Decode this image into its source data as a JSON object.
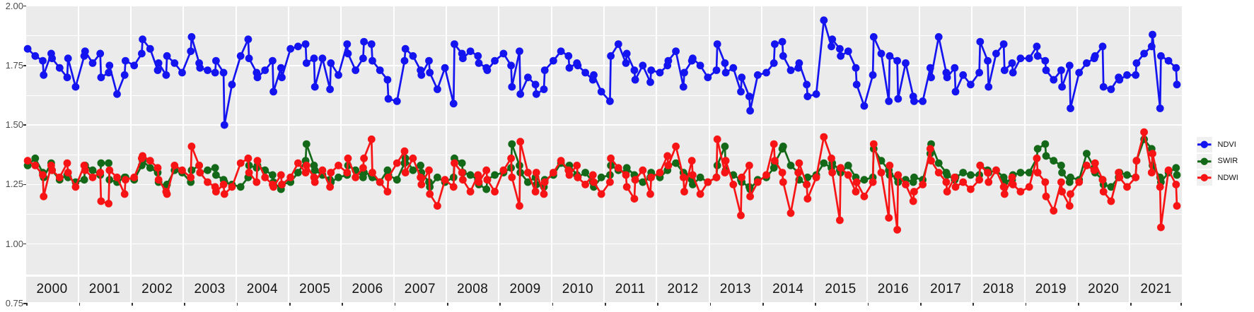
{
  "figure": {
    "title": "",
    "background": "#ffffff"
  },
  "y_axis": {
    "tick_labels": [
      "2.00",
      "1.75",
      "1.50",
      "1.25",
      "1.00",
      "0.75"
    ],
    "tick_values": [
      2.0,
      1.75,
      1.5,
      1.25,
      1.0,
      0.75
    ]
  },
  "x_axis": {
    "years": [
      "2000",
      "2001",
      "2002",
      "2003",
      "2004",
      "2005",
      "2006",
      "2007",
      "2008",
      "2009",
      "2010",
      "2011",
      "2012",
      "2013",
      "2014",
      "2015",
      "2016",
      "2017",
      "2018",
      "2019",
      "2020",
      "2021"
    ]
  },
  "legend": {
    "position": "right",
    "items": [
      {
        "label": "NDVI",
        "color": "#1414f0"
      },
      {
        "label": "SWIR",
        "color": "#146919"
      },
      {
        "label": "NDWI",
        "color": "#f81414"
      }
    ]
  },
  "colors": {
    "panel_bg": "#ebebeb",
    "strip_bg": "#e9e9e9",
    "grid": "#ffffff",
    "axis_text": "#4d4d4d",
    "strip_text": "#141414",
    "legend_key_bg": "#f0f0f0",
    "ndvi": "#1414f0",
    "swir": "#146919",
    "ndwi": "#f81414"
  },
  "chart_data": {
    "type": "line",
    "title": "",
    "xlabel": "",
    "ylabel": "",
    "grid": "on",
    "legend_position": "right",
    "facets": "one panel per year, strip labels at bottom",
    "ylim": [
      0.87,
      2.0
    ],
    "y_ticks": [
      0.75,
      1.0,
      1.25,
      1.5,
      1.75,
      2.0
    ],
    "categories": [
      2000,
      2001,
      2002,
      2003,
      2004,
      2005,
      2006,
      2007,
      2008,
      2009,
      2010,
      2011,
      2012,
      2013,
      2014,
      2015,
      2016,
      2017,
      2018,
      2019,
      2020,
      2021
    ],
    "points_per_year": 10,
    "series": [
      {
        "name": "NDVI",
        "color": "#1414f0",
        "values_by_year": [
          [
            1.82,
            1.79,
            1.77,
            1.71,
            1.8,
            1.78,
            1.74,
            1.7,
            1.78,
            1.66
          ],
          [
            1.79,
            1.81,
            1.76,
            1.8,
            1.7,
            1.72,
            1.75,
            1.63,
            1.71,
            1.77
          ],
          [
            1.75,
            1.8,
            1.86,
            1.82,
            1.73,
            1.76,
            1.71,
            1.79,
            1.76,
            1.72
          ],
          [
            1.81,
            1.87,
            1.76,
            1.74,
            1.73,
            1.72,
            1.77,
            1.72,
            1.5,
            1.67
          ],
          [
            1.79,
            1.86,
            1.78,
            1.72,
            1.7,
            1.73,
            1.77,
            1.64,
            1.74,
            1.7
          ],
          [
            1.82,
            1.83,
            1.84,
            1.76,
            1.78,
            1.66,
            1.78,
            1.65,
            1.76,
            1.71
          ],
          [
            1.84,
            1.8,
            1.73,
            1.78,
            1.85,
            1.84,
            1.77,
            1.73,
            1.69,
            1.61
          ],
          [
            1.6,
            1.77,
            1.82,
            1.79,
            1.73,
            1.71,
            1.77,
            1.72,
            1.65,
            1.74
          ],
          [
            1.59,
            1.84,
            1.8,
            1.78,
            1.81,
            1.79,
            1.76,
            1.74,
            1.73,
            1.77
          ],
          [
            1.8,
            1.75,
            1.66,
            1.81,
            1.63,
            1.7,
            1.67,
            1.63,
            1.65,
            1.73
          ],
          [
            1.77,
            1.81,
            1.79,
            1.74,
            1.76,
            1.75,
            1.72,
            1.69,
            1.71,
            1.64
          ],
          [
            1.6,
            1.79,
            1.84,
            1.76,
            1.8,
            1.73,
            1.69,
            1.75,
            1.68,
            1.73
          ],
          [
            1.72,
            1.75,
            1.77,
            1.81,
            1.66,
            1.72,
            1.77,
            1.78,
            1.75,
            1.7
          ],
          [
            1.73,
            1.84,
            1.76,
            1.72,
            1.74,
            1.64,
            1.7,
            1.62,
            1.56,
            1.71
          ],
          [
            1.72,
            1.76,
            1.84,
            1.85,
            1.79,
            1.73,
            1.74,
            1.76,
            1.67,
            1.62
          ],
          [
            1.63,
            1.94,
            1.83,
            1.86,
            1.82,
            1.79,
            1.81,
            1.74,
            1.67,
            1.58
          ],
          [
            1.71,
            1.87,
            1.8,
            1.6,
            1.79,
            1.77,
            1.61,
            1.76,
            1.62,
            1.6
          ],
          [
            1.6,
            1.74,
            1.7,
            1.87,
            1.72,
            1.7,
            1.74,
            1.64,
            1.71,
            1.67
          ],
          [
            1.72,
            1.85,
            1.77,
            1.66,
            1.8,
            1.84,
            1.73,
            1.76,
            1.72,
            1.78
          ],
          [
            1.78,
            1.83,
            1.79,
            1.77,
            1.73,
            1.69,
            1.73,
            1.66,
            1.75,
            1.57
          ],
          [
            1.72,
            1.76,
            1.78,
            1.79,
            1.83,
            1.66,
            1.65,
            1.7,
            1.69,
            1.71
          ],
          [
            1.71,
            1.76,
            1.8,
            1.83,
            1.88,
            1.57,
            1.79,
            1.77,
            1.74,
            1.67
          ]
        ]
      },
      {
        "name": "SWIR",
        "color": "#146919",
        "values_by_year": [
          [
            1.33,
            1.36,
            1.3,
            1.28,
            1.34,
            1.31,
            1.27,
            1.29,
            1.28,
            1.26
          ],
          [
            1.27,
            1.33,
            1.31,
            1.29,
            1.34,
            1.34,
            1.27,
            1.26,
            1.28,
            1.28
          ],
          [
            1.27,
            1.33,
            1.35,
            1.32,
            1.3,
            1.26,
            1.24,
            1.25,
            1.31,
            1.3
          ],
          [
            1.26,
            1.31,
            1.33,
            1.3,
            1.31,
            1.32,
            1.29,
            1.27,
            1.26,
            1.25
          ],
          [
            1.24,
            1.28,
            1.33,
            1.32,
            1.33,
            1.31,
            1.29,
            1.26,
            1.23,
            1.25
          ],
          [
            1.26,
            1.3,
            1.35,
            1.42,
            1.33,
            1.31,
            1.29,
            1.27,
            1.26,
            1.28
          ],
          [
            1.29,
            1.33,
            1.31,
            1.28,
            1.3,
            1.29,
            1.28,
            1.26,
            1.31,
            1.29
          ],
          [
            1.27,
            1.34,
            1.36,
            1.31,
            1.33,
            1.3,
            1.26,
            1.24,
            1.28,
            1.26
          ],
          [
            1.28,
            1.36,
            1.34,
            1.3,
            1.29,
            1.27,
            1.25,
            1.23,
            1.27,
            1.29
          ],
          [
            1.3,
            1.32,
            1.42,
            1.33,
            1.3,
            1.26,
            1.28,
            1.25,
            1.24,
            1.27
          ],
          [
            1.29,
            1.34,
            1.31,
            1.33,
            1.29,
            1.28,
            1.3,
            1.26,
            1.24,
            1.28
          ],
          [
            1.29,
            1.33,
            1.31,
            1.3,
            1.32,
            1.29,
            1.27,
            1.26,
            1.28,
            1.3
          ],
          [
            1.28,
            1.31,
            1.33,
            1.34,
            1.3,
            1.29,
            1.27,
            1.25,
            1.28,
            1.26
          ],
          [
            1.28,
            1.33,
            1.41,
            1.31,
            1.29,
            1.27,
            1.26,
            1.24,
            1.23,
            1.27
          ],
          [
            1.28,
            1.32,
            1.34,
            1.4,
            1.41,
            1.33,
            1.3,
            1.27,
            1.25,
            1.28
          ],
          [
            1.29,
            1.34,
            1.32,
            1.34,
            1.31,
            1.3,
            1.33,
            1.28,
            1.26,
            1.27
          ],
          [
            1.28,
            1.4,
            1.35,
            1.31,
            1.29,
            1.28,
            1.26,
            1.27,
            1.26,
            1.28
          ],
          [
            1.27,
            1.38,
            1.42,
            1.34,
            1.3,
            1.29,
            1.27,
            1.28,
            1.3,
            1.29
          ],
          [
            1.29,
            1.33,
            1.31,
            1.3,
            1.31,
            1.28,
            1.26,
            1.27,
            1.29,
            1.3
          ],
          [
            1.3,
            1.36,
            1.4,
            1.42,
            1.37,
            1.35,
            1.33,
            1.3,
            1.26,
            1.28
          ],
          [
            1.27,
            1.38,
            1.32,
            1.3,
            1.27,
            1.25,
            1.24,
            1.28,
            1.3,
            1.29
          ],
          [
            1.28,
            1.35,
            1.44,
            1.4,
            1.33,
            1.28,
            1.26,
            1.3,
            1.32,
            1.29
          ]
        ]
      },
      {
        "name": "NDWI",
        "color": "#f81414",
        "values_by_year": [
          [
            1.35,
            1.33,
            1.29,
            1.2,
            1.33,
            1.31,
            1.28,
            1.34,
            1.3,
            1.24
          ],
          [
            1.33,
            1.31,
            1.28,
            1.3,
            1.18,
            1.17,
            1.31,
            1.28,
            1.21,
            1.27
          ],
          [
            1.28,
            1.36,
            1.37,
            1.35,
            1.32,
            1.27,
            1.22,
            1.21,
            1.33,
            1.31
          ],
          [
            1.28,
            1.41,
            1.33,
            1.3,
            1.26,
            1.24,
            1.22,
            1.25,
            1.21,
            1.24
          ],
          [
            1.34,
            1.36,
            1.3,
            1.26,
            1.35,
            1.28,
            1.25,
            1.24,
            1.29,
            1.25
          ],
          [
            1.28,
            1.34,
            1.3,
            1.33,
            1.28,
            1.26,
            1.31,
            1.24,
            1.3,
            1.33
          ],
          [
            1.3,
            1.36,
            1.28,
            1.32,
            1.36,
            1.44,
            1.3,
            1.26,
            1.22,
            1.28
          ],
          [
            1.34,
            1.39,
            1.3,
            1.36,
            1.28,
            1.25,
            1.31,
            1.21,
            1.16,
            1.27
          ],
          [
            1.24,
            1.34,
            1.3,
            1.27,
            1.22,
            1.29,
            1.26,
            1.31,
            1.27,
            1.22
          ],
          [
            1.31,
            1.36,
            1.28,
            1.16,
            1.43,
            1.3,
            1.22,
            1.3,
            1.21,
            1.26
          ],
          [
            1.3,
            1.35,
            1.31,
            1.29,
            1.33,
            1.28,
            1.25,
            1.29,
            1.26,
            1.21
          ],
          [
            1.26,
            1.36,
            1.32,
            1.29,
            1.24,
            1.19,
            1.27,
            1.31,
            1.21,
            1.28
          ],
          [
            1.3,
            1.37,
            1.33,
            1.41,
            1.28,
            1.22,
            1.35,
            1.29,
            1.21,
            1.26
          ],
          [
            1.28,
            1.44,
            1.3,
            1.35,
            1.25,
            1.12,
            1.28,
            1.33,
            1.2,
            1.26
          ],
          [
            1.29,
            1.42,
            1.35,
            1.3,
            1.26,
            1.13,
            1.3,
            1.34,
            1.25,
            1.19
          ],
          [
            1.28,
            1.45,
            1.36,
            1.3,
            1.1,
            1.32,
            1.29,
            1.22,
            1.26,
            1.2
          ],
          [
            1.26,
            1.42,
            1.3,
            1.11,
            1.33,
            1.06,
            1.29,
            1.25,
            1.18,
            1.22
          ],
          [
            1.25,
            1.4,
            1.35,
            1.3,
            1.26,
            1.22,
            1.28,
            1.24,
            1.26,
            1.23
          ],
          [
            1.27,
            1.33,
            1.3,
            1.26,
            1.31,
            1.24,
            1.21,
            1.28,
            1.25,
            1.22
          ],
          [
            1.24,
            1.36,
            1.3,
            1.26,
            1.2,
            1.14,
            1.26,
            1.22,
            1.16,
            1.21
          ],
          [
            1.26,
            1.33,
            1.31,
            1.34,
            1.27,
            1.22,
            1.18,
            1.3,
            1.28,
            1.24
          ],
          [
            1.28,
            1.35,
            1.47,
            1.3,
            1.38,
            1.24,
            1.07,
            1.31,
            1.25,
            1.16
          ]
        ]
      }
    ]
  }
}
